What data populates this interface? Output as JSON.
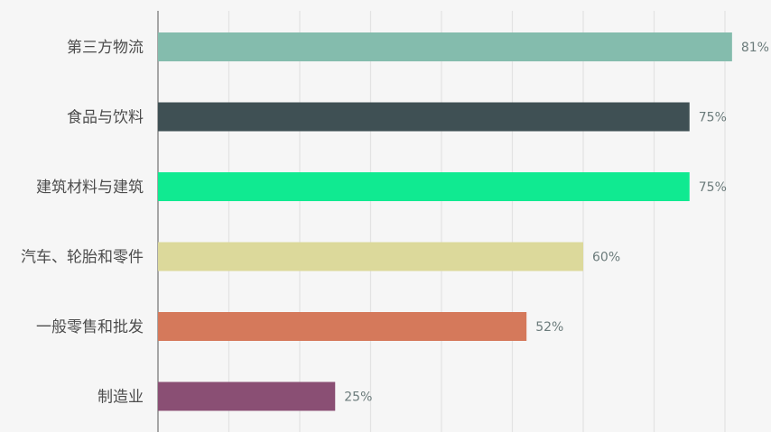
{
  "chart_data": {
    "type": "bar",
    "orientation": "horizontal",
    "categories": [
      "第三方物流",
      "食品与饮料",
      "建筑材料与建筑",
      "汽车、轮胎和零件",
      "一般零售和批发",
      "制造业"
    ],
    "values": [
      81,
      75,
      75,
      60,
      52,
      25
    ],
    "value_labels": [
      "81%",
      "75%",
      "75%",
      "60%",
      "52%",
      "25%"
    ],
    "colors": [
      "#84bcad",
      "#3f5054",
      "#10ea91",
      "#dcd99b",
      "#d5795b",
      "#8a4f74"
    ],
    "xlim": [
      0,
      85
    ],
    "grid": true,
    "legend": false,
    "title": "",
    "xlabel": "",
    "ylabel": ""
  }
}
